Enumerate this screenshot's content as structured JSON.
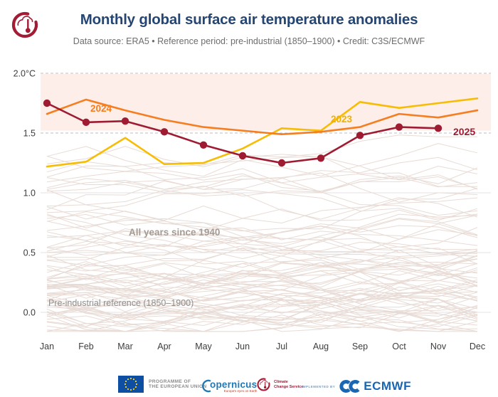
{
  "header": {
    "title": "Monthly global surface air temperature anomalies",
    "subtitle": "Data source: ERA5 • Reference period: pre-industrial (1850–1900) • Credit: C3S/ECMWF"
  },
  "colors": {
    "title": "#254672",
    "subtitle": "#6d6d6d",
    "axis_text": "#3d3d3d",
    "grid_dashed": "#bcbcbc",
    "grid_solid": "#e4e2e0",
    "annotation_gray": "#a59b95",
    "reference_text": "#8f8f8f",
    "logo_red": "#a21c35"
  },
  "chart_data": {
    "type": "line",
    "unit": "°C",
    "months": [
      "Jan",
      "Feb",
      "Mar",
      "Apr",
      "May",
      "Jun",
      "Jul",
      "Aug",
      "Sep",
      "Oct",
      "Nov",
      "Dec"
    ],
    "y_ticks": [
      {
        "value": 2.0,
        "label": "2.0°C",
        "grid": "dashed"
      },
      {
        "value": 1.5,
        "label": "1.5",
        "grid": "dashed"
      },
      {
        "value": 1.0,
        "label": "1.0",
        "grid": "solid"
      },
      {
        "value": 0.5,
        "label": "0.5",
        "grid": "solid"
      },
      {
        "value": 0.0,
        "label": "0.0",
        "grid": "solid"
      }
    ],
    "ylim": [
      -0.2,
      2.05
    ],
    "highlight_band": {
      "from": 1.52,
      "to": 2.0,
      "color": "#fdeeea"
    },
    "series": [
      {
        "name": "2023",
        "color": "#f7bd05",
        "label_color": "#efb000",
        "markers": false,
        "values": [
          1.22,
          1.26,
          1.46,
          1.24,
          1.25,
          1.37,
          1.54,
          1.52,
          1.76,
          1.71,
          1.75,
          1.79
        ]
      },
      {
        "name": "2024",
        "color": "#f57e20",
        "markers": false,
        "values": [
          1.66,
          1.78,
          1.69,
          1.61,
          1.55,
          1.52,
          1.49,
          1.51,
          1.55,
          1.66,
          1.63,
          1.69
        ]
      },
      {
        "name": "2025",
        "color": "#9e1b32",
        "markers": true,
        "values": [
          1.75,
          1.59,
          1.6,
          1.51,
          1.4,
          1.31,
          1.25,
          1.29,
          1.48,
          1.55,
          1.54
        ]
      }
    ],
    "background_series": {
      "label": "All years since 1940",
      "years": "1940–2022",
      "count": 83,
      "color": "#e8dbd5"
    },
    "reference_label": "Pre-industrial reference (1850–1900)"
  },
  "footer": {
    "eu": {
      "line1": "PROGRAMME OF",
      "line2": "THE EUROPEAN UNION"
    },
    "copernicus": {
      "wordmark": "opernicus",
      "tagline": "Europe's eyes on Earth"
    },
    "c3s": {
      "line1": "Climate",
      "line2": "Change Service"
    },
    "ecmwf": {
      "implemented_by": "IMPLEMENTED BY",
      "wordmark": "ECMWF"
    }
  }
}
